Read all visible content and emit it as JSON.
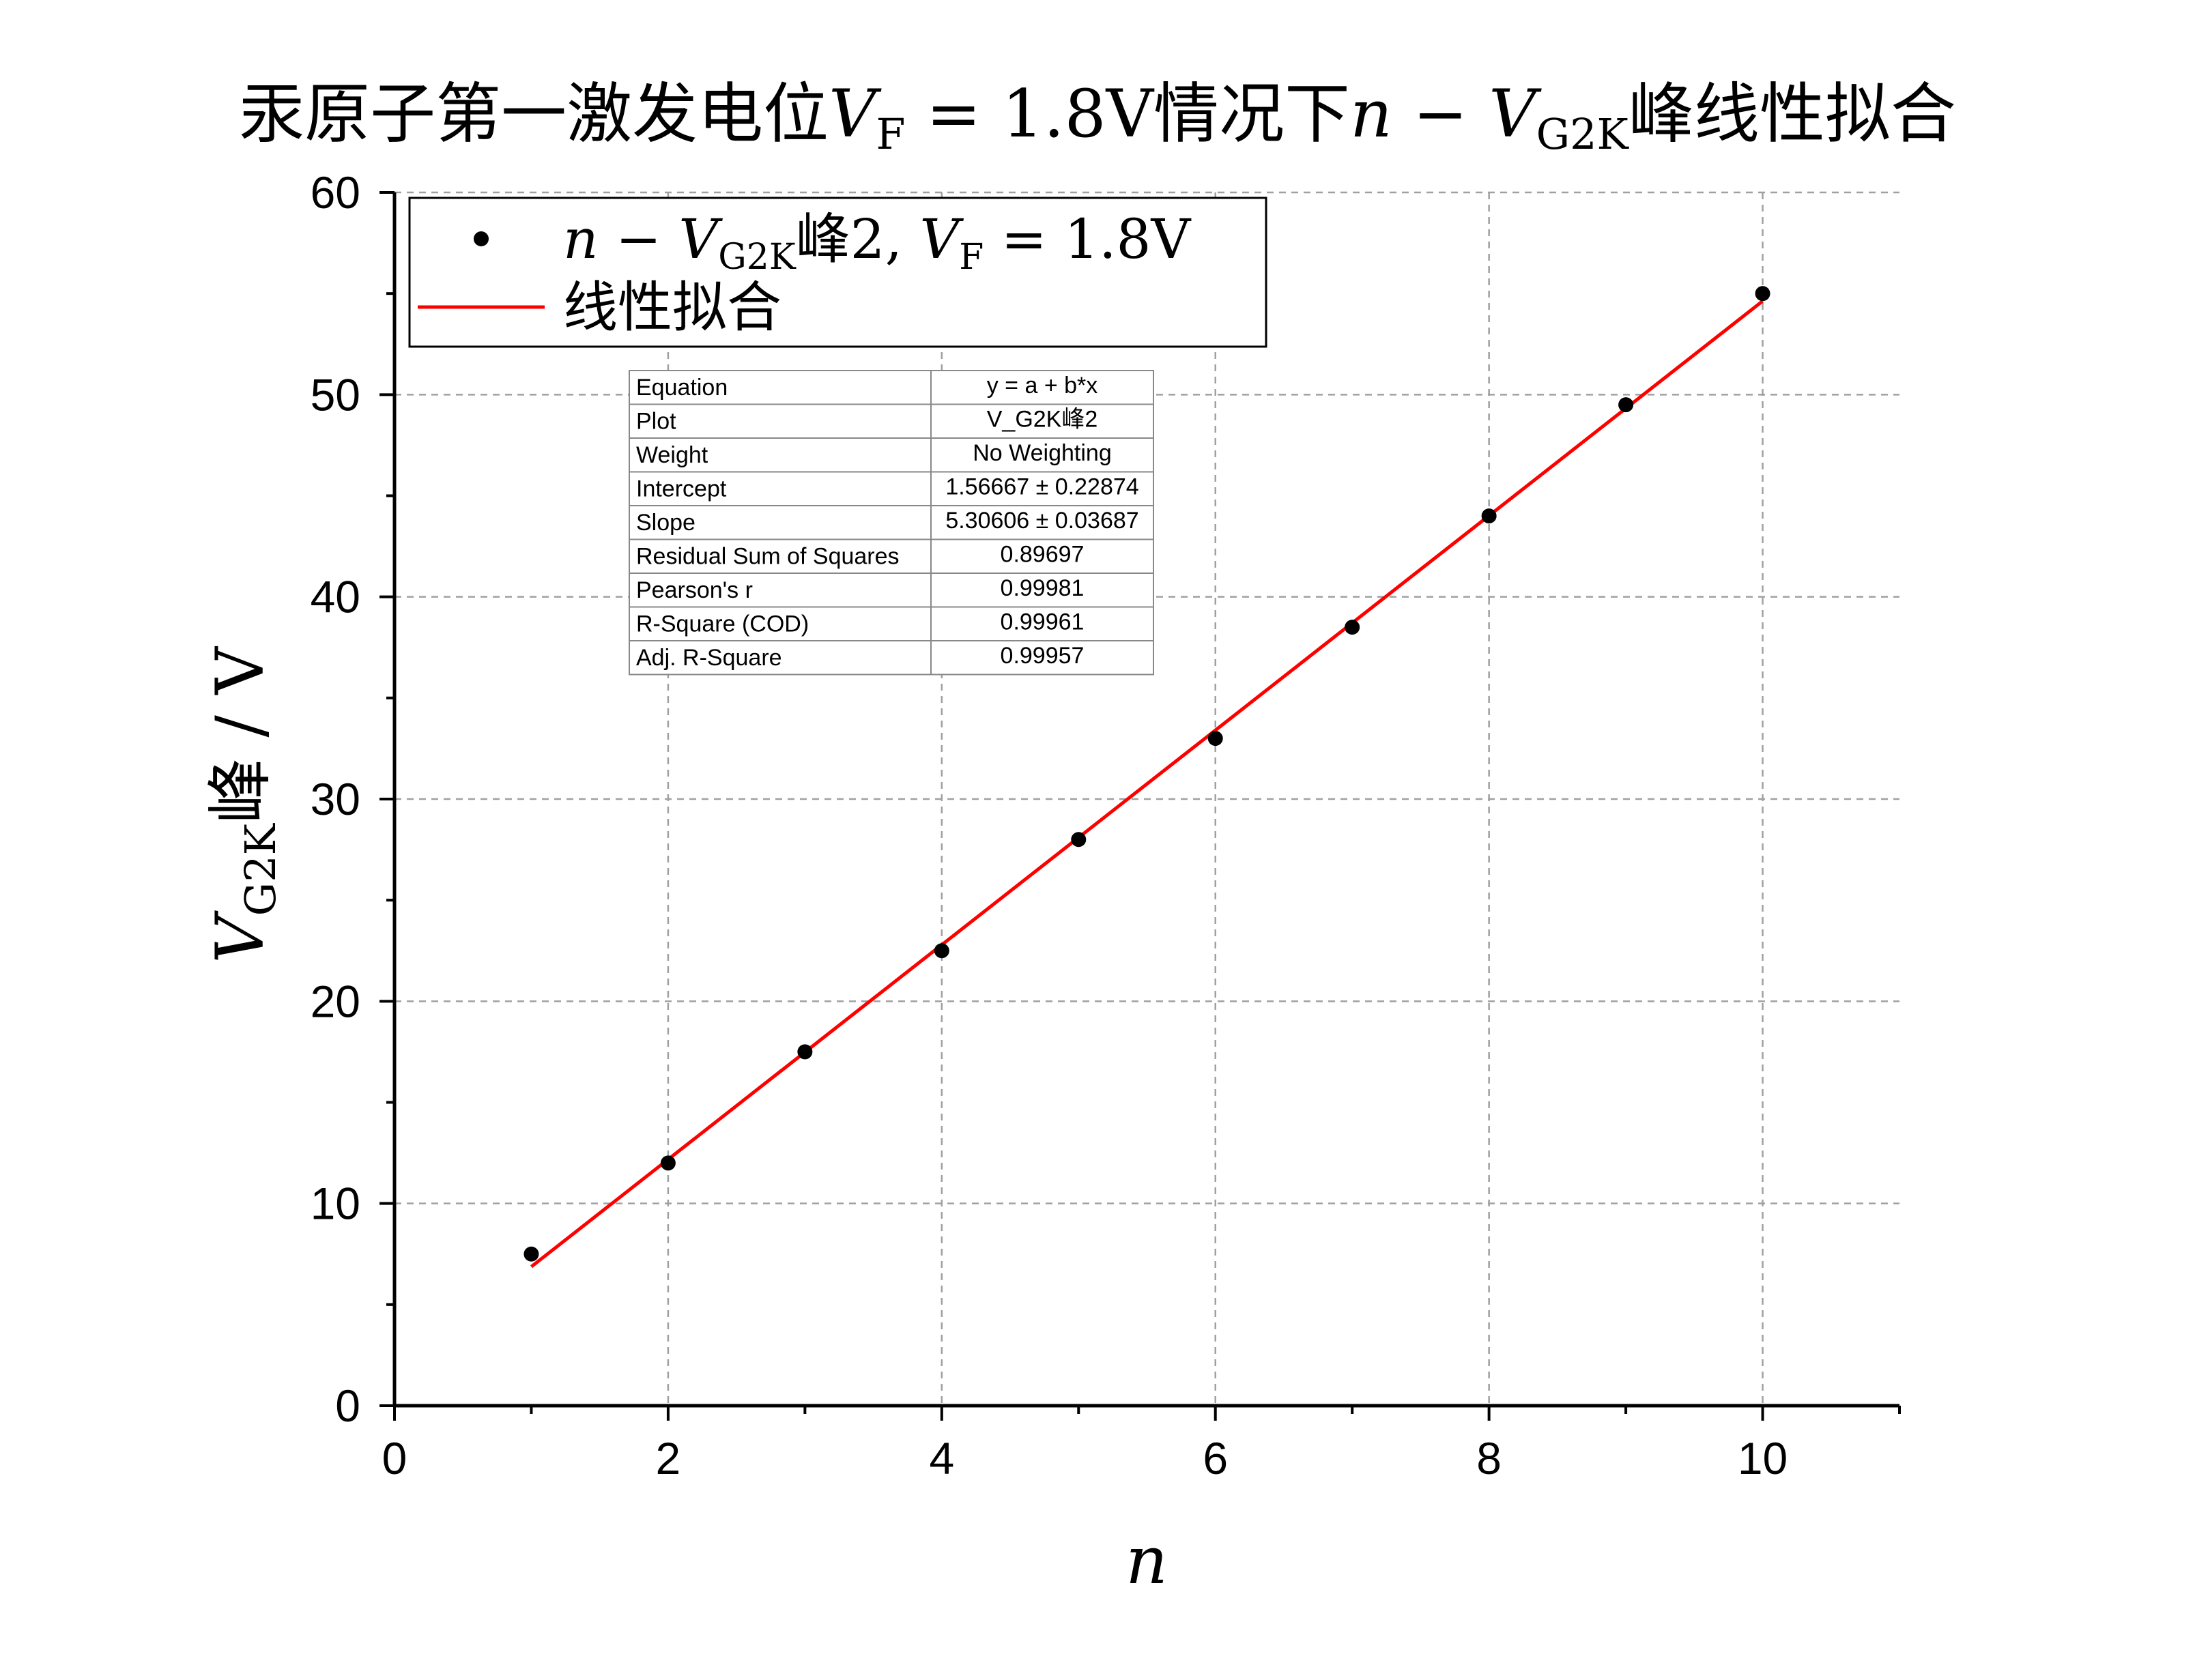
{
  "chart_data": {
    "type": "scatter",
    "title": {
      "prefix": "汞原子第一激发电位",
      "vf_symbol": "V",
      "vf_sub": "F",
      "vf_eq": " = 1.8V",
      "mid": "情况下",
      "n_symbol": "n",
      "minus": " − ",
      "v_symbol": "V",
      "v_sub": "G2K",
      "suffix": "峰线性拟合"
    },
    "xlabel": "n",
    "ylabel": {
      "symbol": "V",
      "sub": "G2K",
      "rest": "峰 / V"
    },
    "xlim": [
      0,
      11
    ],
    "ylim": [
      0,
      60
    ],
    "x_ticks": [
      "0",
      "2",
      "4",
      "6",
      "8",
      "10"
    ],
    "y_ticks": [
      "0",
      "10",
      "20",
      "30",
      "40",
      "50",
      "60"
    ],
    "x_tick_values": [
      0,
      2,
      4,
      6,
      8,
      10
    ],
    "y_tick_values": [
      0,
      10,
      20,
      30,
      40,
      50,
      60
    ],
    "grid": true,
    "legend_position": "top-left",
    "legend": {
      "series_label": {
        "n": "n",
        "minus": " − ",
        "v": "V",
        "v_sub": "G2K",
        "peak": "峰2, ",
        "vf": "V",
        "vf_sub": "F",
        "vf_eq": " = 1.8V"
      },
      "fit_label": "线性拟合"
    },
    "series": [
      {
        "type": "scatter",
        "color": "#000000",
        "x": [
          1,
          2,
          3,
          4,
          5,
          6,
          7,
          8,
          9,
          10
        ],
        "y": [
          7.5,
          12.0,
          17.5,
          22.5,
          28.0,
          33.0,
          38.5,
          44.0,
          49.5,
          55.0
        ]
      },
      {
        "type": "line",
        "color": "#ff0000",
        "x": [
          1,
          10
        ],
        "intercept": 1.56667,
        "slope": 5.30606
      }
    ],
    "fit_table": [
      [
        "Equation",
        "y = a + b*x"
      ],
      [
        "Plot",
        "V_G2K峰2"
      ],
      [
        "Weight",
        "No Weighting"
      ],
      [
        "Intercept",
        "1.56667 ± 0.22874"
      ],
      [
        "Slope",
        "5.30606 ± 0.03687"
      ],
      [
        "Residual Sum of Squares",
        "0.89697"
      ],
      [
        "Pearson's r",
        "0.99981"
      ],
      [
        "R-Square (COD)",
        "0.99961"
      ],
      [
        "Adj. R-Square",
        "0.99957"
      ]
    ]
  }
}
